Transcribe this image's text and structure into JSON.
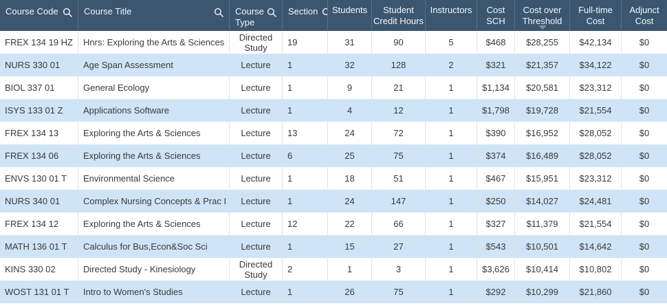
{
  "colors": {
    "header_bg": "#3b566f",
    "header_text": "#f4f7f9",
    "header_divider": "#56708a",
    "row_bg": "#ffffff",
    "row_alt_bg": "#cfe4f7",
    "body_divider": "#e2e2e2",
    "body_text": "#3a3a3a",
    "sort_arrow": "#8c8c8c"
  },
  "table": {
    "sort": {
      "column": "cost_over_threshold",
      "direction": "descending",
      "indicator_icon": "triangle-down-icon"
    },
    "columns": [
      {
        "label": "Course Code",
        "field": "course_code",
        "search_icon": true
      },
      {
        "label": "Course Title",
        "field": "course_title",
        "search_icon": true
      },
      {
        "label": "Course Type",
        "field": "course_type",
        "search_icon": true
      },
      {
        "label": "Section",
        "field": "section",
        "search_icon": true
      },
      {
        "label": "Students",
        "field": "students",
        "search_icon": false
      },
      {
        "label": "Student Credit Hours",
        "field": "student_credit_hours",
        "search_icon": false
      },
      {
        "label": "Instructors",
        "field": "instructors",
        "search_icon": false
      },
      {
        "label": "Cost SCH",
        "field": "cost_sch",
        "search_icon": false
      },
      {
        "label": "Cost over Threshold",
        "field": "cost_over_threshold",
        "search_icon": false
      },
      {
        "label": "Full-time Cost",
        "field": "full_time_cost",
        "search_icon": false
      },
      {
        "label": "Adjunct Cost",
        "field": "adjunct_cost",
        "search_icon": false
      }
    ],
    "rows": [
      {
        "course_code": "FREX 134 19 HZ",
        "course_title": "Hnrs: Exploring the Arts & Sciences",
        "course_type": "Directed Study",
        "section": "19",
        "students": "31",
        "student_credit_hours": "90",
        "instructors": "5",
        "cost_sch": "$468",
        "cost_over_threshold": "$28,255",
        "full_time_cost": "$42,134",
        "adjunct_cost": "$0"
      },
      {
        "course_code": "NURS 330 01",
        "course_title": "Age Span Assessment",
        "course_type": "Lecture",
        "section": "1",
        "students": "32",
        "student_credit_hours": "128",
        "instructors": "2",
        "cost_sch": "$321",
        "cost_over_threshold": "$21,357",
        "full_time_cost": "$34,122",
        "adjunct_cost": "$0"
      },
      {
        "course_code": "BIOL 337 01",
        "course_title": "General Ecology",
        "course_type": "Lecture",
        "section": "1",
        "students": "9",
        "student_credit_hours": "21",
        "instructors": "1",
        "cost_sch": "$1,134",
        "cost_over_threshold": "$20,581",
        "full_time_cost": "$23,312",
        "adjunct_cost": "$0"
      },
      {
        "course_code": "ISYS 133 01 Z",
        "course_title": "Applications Software",
        "course_type": "Lecture",
        "section": "1",
        "students": "4",
        "student_credit_hours": "12",
        "instructors": "1",
        "cost_sch": "$1,798",
        "cost_over_threshold": "$19,728",
        "full_time_cost": "$21,554",
        "adjunct_cost": "$0"
      },
      {
        "course_code": "FREX 134 13",
        "course_title": "Exploring the Arts & Sciences",
        "course_type": "Lecture",
        "section": "13",
        "students": "24",
        "student_credit_hours": "72",
        "instructors": "1",
        "cost_sch": "$390",
        "cost_over_threshold": "$16,952",
        "full_time_cost": "$28,052",
        "adjunct_cost": "$0"
      },
      {
        "course_code": "FREX 134 06",
        "course_title": "Exploring the Arts & Sciences",
        "course_type": "Lecture",
        "section": "6",
        "students": "25",
        "student_credit_hours": "75",
        "instructors": "1",
        "cost_sch": "$374",
        "cost_over_threshold": "$16,489",
        "full_time_cost": "$28,052",
        "adjunct_cost": "$0"
      },
      {
        "course_code": "ENVS 130 01 T",
        "course_title": "Environmental Science",
        "course_type": "Lecture",
        "section": "1",
        "students": "18",
        "student_credit_hours": "51",
        "instructors": "1",
        "cost_sch": "$467",
        "cost_over_threshold": "$15,951",
        "full_time_cost": "$23,312",
        "adjunct_cost": "$0"
      },
      {
        "course_code": "NURS 340 01",
        "course_title": "Complex Nursing Concepts & Prac I",
        "course_type": "Lecture",
        "section": "1",
        "students": "24",
        "student_credit_hours": "147",
        "instructors": "1",
        "cost_sch": "$250",
        "cost_over_threshold": "$14,027",
        "full_time_cost": "$24,481",
        "adjunct_cost": "$0"
      },
      {
        "course_code": "FREX 134 12",
        "course_title": "Exploring the Arts & Sciences",
        "course_type": "Lecture",
        "section": "12",
        "students": "22",
        "student_credit_hours": "66",
        "instructors": "1",
        "cost_sch": "$327",
        "cost_over_threshold": "$11,379",
        "full_time_cost": "$21,554",
        "adjunct_cost": "$0"
      },
      {
        "course_code": "MATH 136 01 T",
        "course_title": "Calculus for Bus,Econ&Soc Sci",
        "course_type": "Lecture",
        "section": "1",
        "students": "15",
        "student_credit_hours": "27",
        "instructors": "1",
        "cost_sch": "$543",
        "cost_over_threshold": "$10,501",
        "full_time_cost": "$14,642",
        "adjunct_cost": "$0"
      },
      {
        "course_code": "KINS 330 02",
        "course_title": "Directed Study - Kinesiology",
        "course_type": "Directed Study",
        "section": "2",
        "students": "1",
        "student_credit_hours": "3",
        "instructors": "1",
        "cost_sch": "$3,626",
        "cost_over_threshold": "$10,414",
        "full_time_cost": "$10,802",
        "adjunct_cost": "$0"
      },
      {
        "course_code": "WOST 131 01 T",
        "course_title": "Intro to Women's Studies",
        "course_type": "Lecture",
        "section": "1",
        "students": "26",
        "student_credit_hours": "75",
        "instructors": "1",
        "cost_sch": "$292",
        "cost_over_threshold": "$10,299",
        "full_time_cost": "$21,860",
        "adjunct_cost": "$0"
      }
    ]
  }
}
